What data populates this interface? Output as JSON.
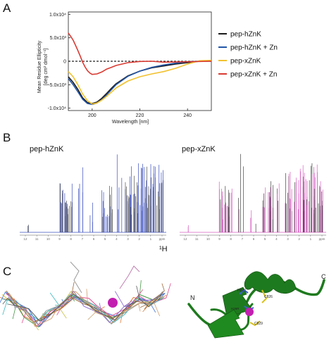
{
  "panels": {
    "a": "A",
    "b": "B",
    "c": "C"
  },
  "chart_data": {
    "type": "line",
    "title": "",
    "xlabel": "Wavelength [nm]",
    "ylabel": "Mean Residue Ellipticity [deg cm² dmol⁻¹]",
    "xlim": [
      190,
      250
    ],
    "ylim": [
      -10500,
      10500
    ],
    "xticks": [
      200,
      220,
      240
    ],
    "yticks": [
      {
        "value": 10000,
        "label": "1.0x10⁴"
      },
      {
        "value": 5000,
        "label": "5.0x10³"
      },
      {
        "value": 0,
        "label": "0"
      },
      {
        "value": -5000,
        "label": "-5.0x10³"
      },
      {
        "value": -10000,
        "label": "-1.0x10⁴"
      }
    ],
    "zero_line": "dashed",
    "legend_position": "right",
    "series": [
      {
        "name": "pep-hZnK",
        "color": "#1a1a1a",
        "x": [
          190,
          192,
          194,
          196,
          198,
          200,
          202,
          204,
          206,
          208,
          210,
          215,
          220,
          225,
          230,
          235,
          240,
          245,
          250
        ],
        "y": [
          -3300,
          -4500,
          -6000,
          -7800,
          -8800,
          -9000,
          -8700,
          -7900,
          -6900,
          -5800,
          -4800,
          -3100,
          -2100,
          -1400,
          -1000,
          -600,
          -300,
          0,
          100
        ]
      },
      {
        "name": "pep-hZnK + Zn",
        "color": "#2255a8",
        "x": [
          190,
          192,
          194,
          196,
          198,
          200,
          202,
          204,
          206,
          208,
          210,
          215,
          220,
          225,
          230,
          235,
          240,
          245,
          250
        ],
        "y": [
          -3700,
          -5000,
          -6500,
          -8100,
          -9000,
          -9200,
          -8900,
          -8200,
          -7200,
          -6100,
          -5000,
          -3200,
          -2100,
          -1300,
          -800,
          -400,
          -100,
          0,
          0
        ]
      },
      {
        "name": "pep-xZnK",
        "color": "#f2c12e",
        "x": [
          190,
          192,
          194,
          196,
          198,
          200,
          202,
          204,
          206,
          208,
          210,
          215,
          220,
          225,
          230,
          235,
          240,
          245,
          250
        ],
        "y": [
          -2200,
          -3300,
          -5000,
          -7000,
          -8400,
          -9100,
          -8900,
          -8300,
          -7500,
          -6600,
          -5700,
          -4200,
          -3300,
          -2700,
          -2200,
          -1500,
          -600,
          100,
          200
        ]
      },
      {
        "name": "pep-xZnK + Zn",
        "color": "#d93a32",
        "x": [
          190,
          191,
          192,
          193,
          194,
          195,
          196,
          197,
          198,
          199,
          200,
          202,
          204,
          206,
          208,
          210,
          215,
          220,
          225,
          230,
          240,
          250
        ],
        "y": [
          6000,
          5300,
          4500,
          3400,
          2300,
          1100,
          -200,
          -1200,
          -2000,
          -2500,
          -2800,
          -2700,
          -2300,
          -1700,
          -1300,
          -900,
          -300,
          -50,
          0,
          -200,
          -100,
          0
        ]
      }
    ]
  },
  "nmr": {
    "left_title": "pep-hZnK",
    "right_title": "pep-xZnK",
    "x_label": "¹H",
    "ppm_ticks": [
      "12",
      "11",
      "10",
      "9",
      "8",
      "7",
      "6",
      "5",
      "4",
      "3",
      "2",
      "1",
      "ppm"
    ],
    "left_color": "#3b4fbf",
    "right_color": "#d65fc2"
  },
  "structure": {
    "n_label": "N",
    "c_label": "C",
    "residues": [
      "H823",
      "H26R",
      "C826",
      "C829"
    ],
    "ribbon_color": "#1e7a1e",
    "zinc_color": "#c21fb0"
  }
}
